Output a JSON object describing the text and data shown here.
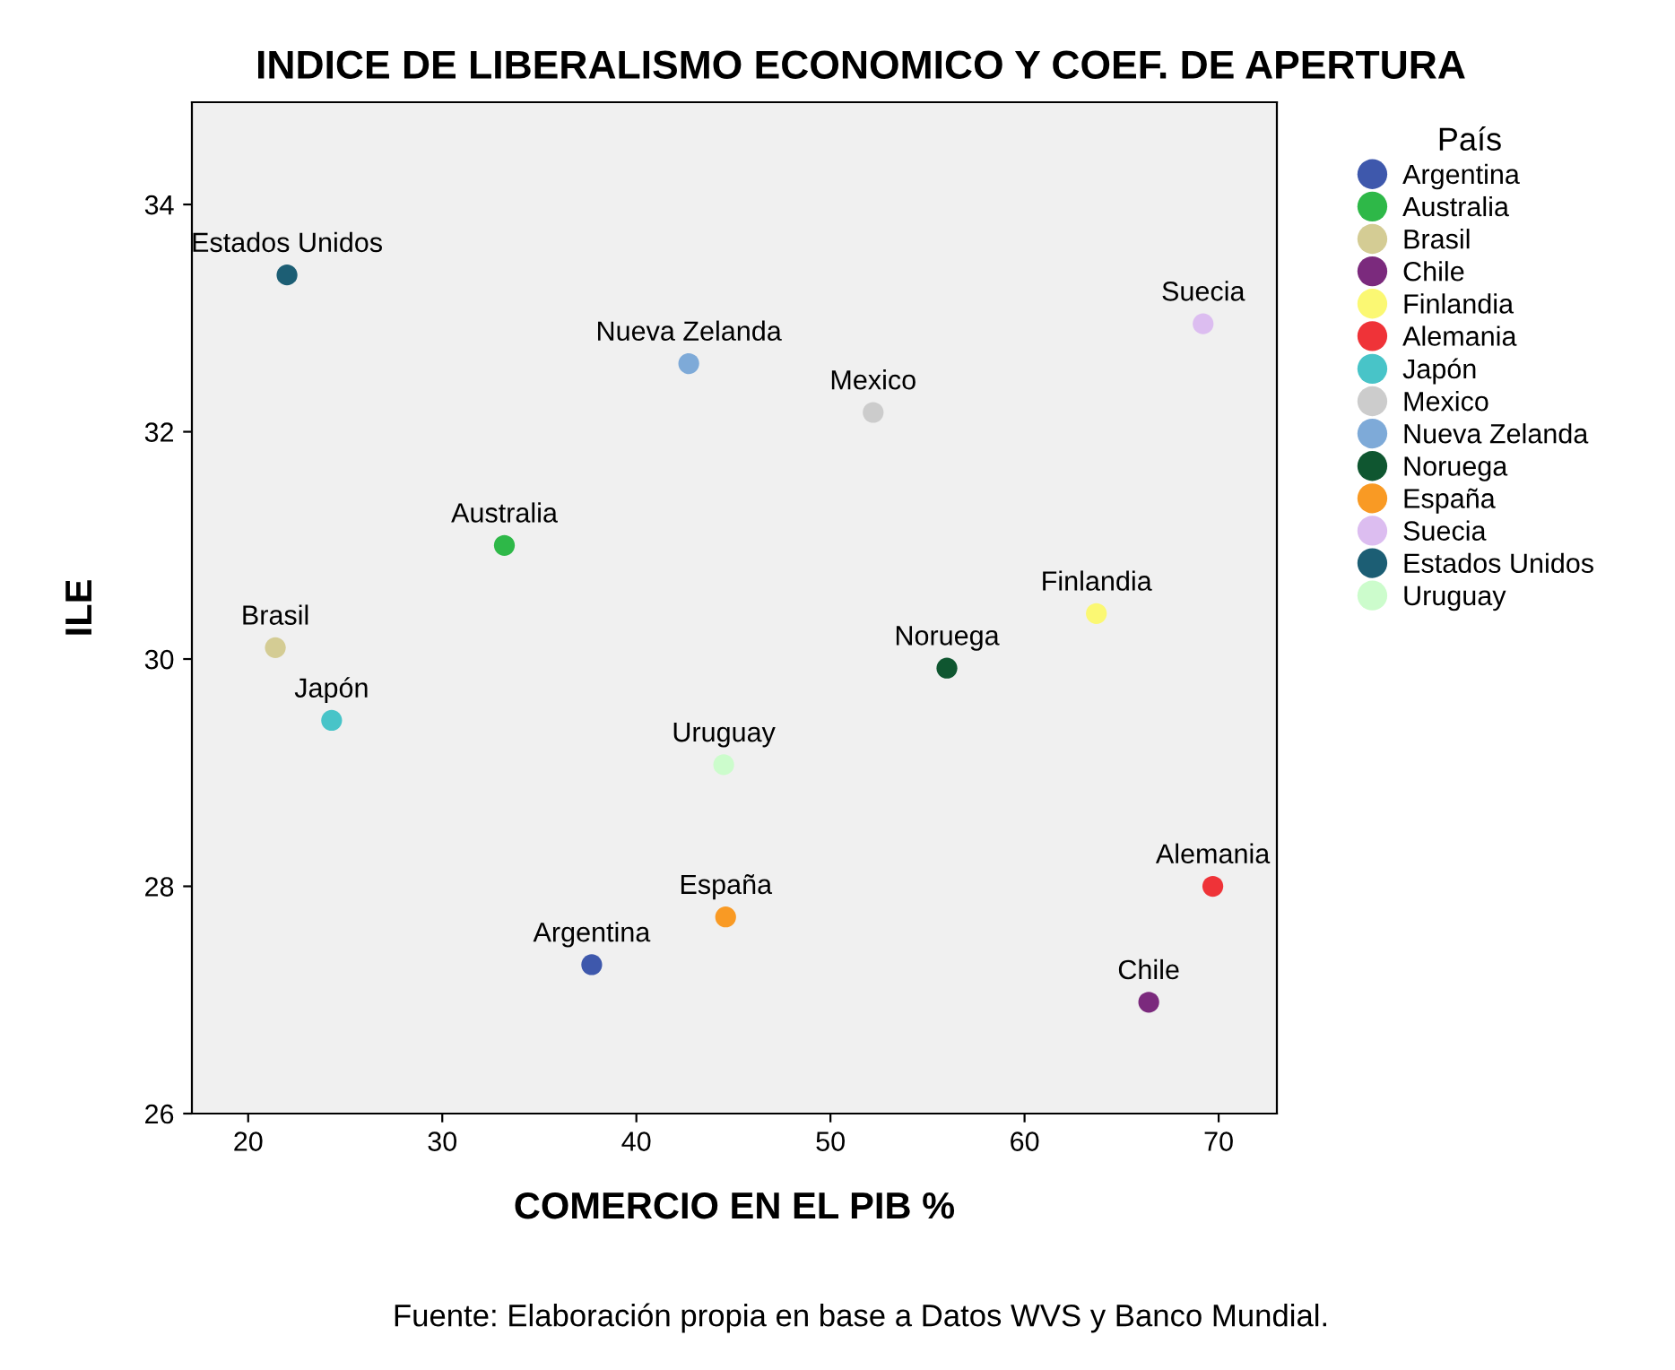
{
  "chart_data": {
    "type": "scatter",
    "title": "INDICE DE LIBERALISMO ECONOMICO Y COEF. DE APERTURA",
    "xlabel": "COMERCIO EN EL PIB %",
    "ylabel": "ILE",
    "legend_title": "País",
    "legend": "right",
    "marker": "circle",
    "grid": false,
    "xlim": [
      17.1,
      73.0
    ],
    "ylim": [
      26,
      34.9
    ],
    "xticks": [
      20,
      30,
      40,
      50,
      60,
      70
    ],
    "yticks": [
      26,
      28,
      30,
      32,
      34
    ],
    "annotations": [
      "Fuente: Elaboración propia en base a Datos WVS y Banco Mundial."
    ],
    "series": [
      {
        "name": "Argentina",
        "color": "#3e58ac",
        "x": [
          37.7
        ],
        "values": [
          27.31
        ]
      },
      {
        "name": "Australia",
        "color": "#2eb848",
        "x": [
          33.2
        ],
        "values": [
          31.0
        ]
      },
      {
        "name": "Brasil",
        "color": "#d4cc94",
        "x": [
          21.4
        ],
        "values": [
          30.1
        ]
      },
      {
        "name": "Chile",
        "color": "#7b2a7d",
        "x": [
          66.4
        ],
        "values": [
          26.98
        ]
      },
      {
        "name": "Finlandia",
        "color": "#fbf873",
        "x": [
          63.7
        ],
        "values": [
          30.4
        ]
      },
      {
        "name": "Alemania",
        "color": "#ef3338",
        "x": [
          69.7
        ],
        "values": [
          28.0
        ]
      },
      {
        "name": "Japón",
        "color": "#48c4c8",
        "x": [
          24.3
        ],
        "values": [
          29.46
        ]
      },
      {
        "name": "Mexico",
        "color": "#cccccc",
        "x": [
          52.2
        ],
        "values": [
          32.17
        ]
      },
      {
        "name": "Nueva Zelanda",
        "color": "#7eaad8",
        "x": [
          42.7
        ],
        "values": [
          32.6
        ]
      },
      {
        "name": "Noruega",
        "color": "#0f5630",
        "x": [
          56.0
        ],
        "values": [
          29.92
        ]
      },
      {
        "name": "España",
        "color": "#f99a24",
        "x": [
          44.6
        ],
        "values": [
          27.73
        ]
      },
      {
        "name": "Suecia",
        "color": "#dcbdf0",
        "x": [
          69.2
        ],
        "values": [
          32.95
        ]
      },
      {
        "name": "Estados Unidos",
        "color": "#1c5e74",
        "x": [
          22.0
        ],
        "values": [
          33.38
        ]
      },
      {
        "name": "Uruguay",
        "color": "#ccfccc",
        "x": [
          44.5
        ],
        "values": [
          29.07
        ]
      }
    ]
  }
}
